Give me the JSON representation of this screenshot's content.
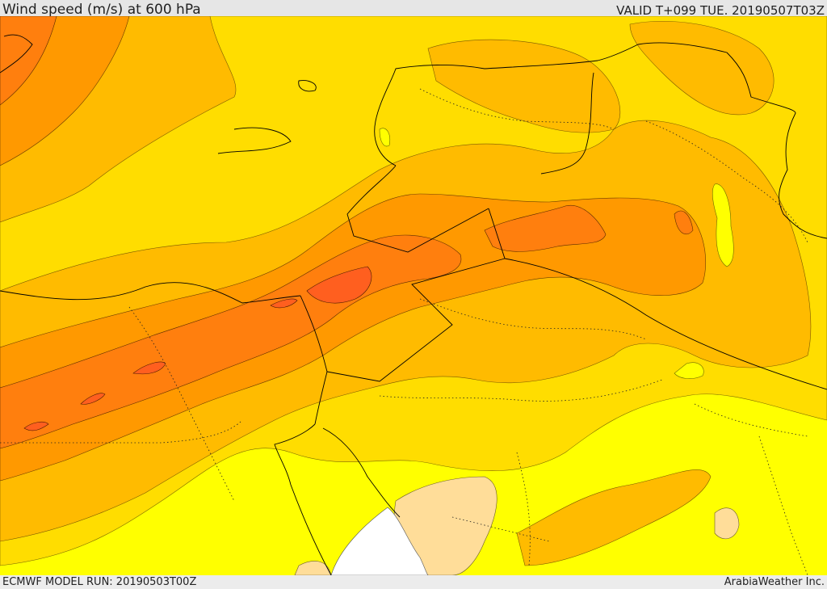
{
  "header": {
    "title": "Wind speed (m/s) at 600 hPa",
    "valid_time": "VALID T+099 TUE. 20190507T03Z"
  },
  "footer": {
    "model_run": "ECMWF MODEL RUN: 20190503T00Z",
    "credit": "ArabiaWeather Inc."
  },
  "map": {
    "variable": "wind speed",
    "level": "600 hPa",
    "region": "Eastern Mediterranean / Middle East",
    "fill_colors": [
      "#ffffff",
      "#ffdd99",
      "#ffff00",
      "#ffdd00",
      "#ffbb00",
      "#ff9900",
      "#ff7f0e",
      "#ff5f1f"
    ],
    "border_style": "solid black coastlines and borders, dotted internal boundaries"
  }
}
